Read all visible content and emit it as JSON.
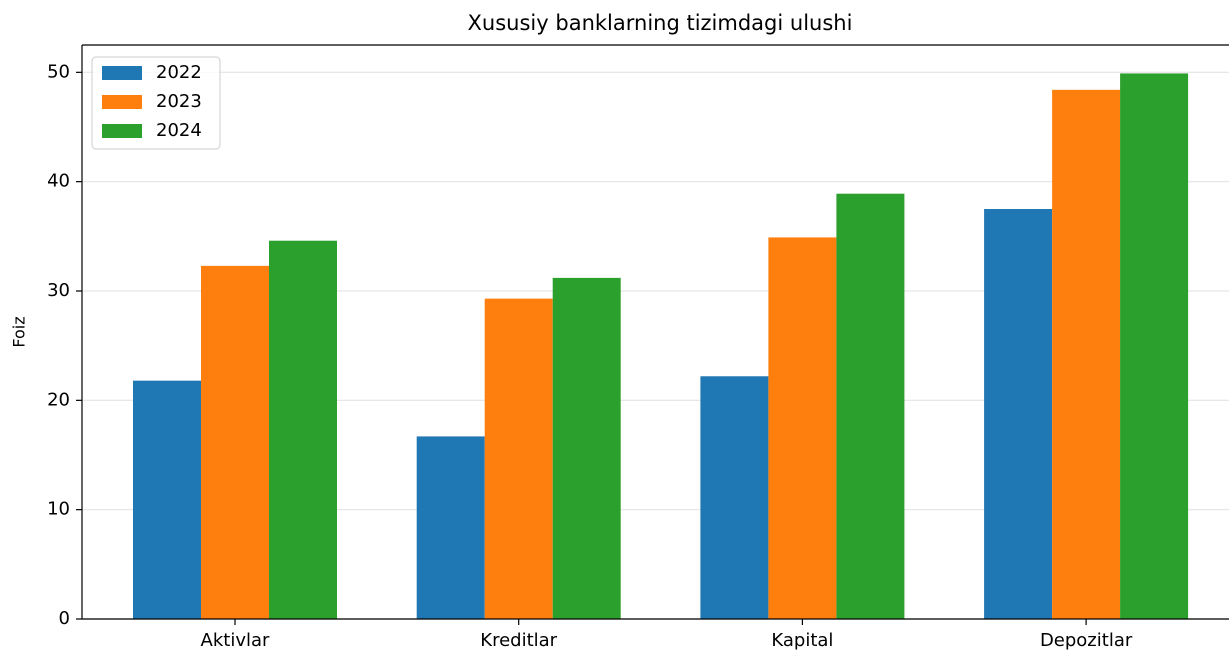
{
  "chart_data": {
    "type": "bar",
    "title": "Xususiy banklarning tizimdagi ulushi",
    "ylabel": "Foiz",
    "categories": [
      "Aktivlar",
      "Kreditlar",
      "Kapital",
      "Depozitlar"
    ],
    "series": [
      {
        "name": "2022",
        "color": "#1f77b4",
        "values": [
          21.8,
          16.7,
          22.2,
          37.5
        ]
      },
      {
        "name": "2023",
        "color": "#ff7f0e",
        "values": [
          32.3,
          29.3,
          34.9,
          48.4
        ]
      },
      {
        "name": "2024",
        "color": "#2ca02c",
        "values": [
          34.6,
          31.2,
          38.9,
          49.9
        ]
      }
    ],
    "ylim": [
      0,
      52.5
    ],
    "yticks": [
      0,
      10,
      20,
      30,
      40,
      50
    ],
    "grid": true,
    "legend": "upper left"
  }
}
